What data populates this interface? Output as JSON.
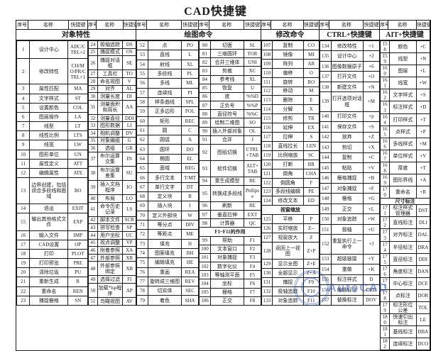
{
  "title": "CAD快捷键",
  "column_headers": [
    "序号",
    "名称",
    "快捷键"
  ],
  "section_titles": [
    "对象特性",
    "绘图命令",
    "修改命令",
    "CTRL+快捷键",
    "AIT+快捷键"
  ],
  "watermark": {
    "text": "AutoCAD"
  },
  "panels": [
    {
      "rows": [
        {
          "n": "1",
          "name": "设计中心",
          "key": "ADC/CTRL+2"
        },
        {
          "n": "2",
          "name": "修改特性",
          "key": "CH/MO/PR/CTRL+1"
        },
        {
          "n": "3",
          "name": "属性匹配",
          "key": "MA"
        },
        {
          "n": "4",
          "name": "文字样式",
          "key": "ST"
        },
        {
          "n": "5",
          "name": "设置颜色",
          "key": "COL"
        },
        {
          "n": "6",
          "name": "图层操作",
          "key": "LA"
        },
        {
          "n": "7",
          "name": "线型",
          "key": "LT"
        },
        {
          "n": "8",
          "name": "线性比例",
          "key": "LTS"
        },
        {
          "n": "9",
          "name": "线宽",
          "key": "LW"
        },
        {
          "n": "10",
          "name": "图形单位",
          "key": "UN"
        },
        {
          "n": "11",
          "name": "属性定义",
          "key": "ATT"
        },
        {
          "n": "12",
          "name": "编辑属性",
          "key": "ATE"
        },
        {
          "n": "13",
          "name": "边界创建，包括闭合多段线和面域",
          "key": "BO"
        },
        {
          "n": "14",
          "name": "退出",
          "key": "EXIT"
        },
        {
          "n": "15",
          "name": "输出其他格式文件",
          "key": "EXP"
        },
        {
          "n": "16",
          "name": "输入文件",
          "key": "IMP"
        },
        {
          "n": "17",
          "name": "CAD设置",
          "key": "OP"
        },
        {
          "n": "18",
          "name": "打印",
          "key": "PLOT"
        },
        {
          "n": "19",
          "name": "打印预览",
          "key": "PRE"
        },
        {
          "n": "20",
          "name": "清除垃圾",
          "key": "PU"
        },
        {
          "n": "21",
          "name": "重新生成",
          "key": "R"
        },
        {
          "n": "22",
          "name": "重命名",
          "key": "REN"
        },
        {
          "n": "23",
          "name": "捕捉栅格",
          "key": "SN"
        }
      ]
    },
    {
      "rows": [
        {
          "n": "24",
          "name": "极轴追踪",
          "key": "DS"
        },
        {
          "n": "25",
          "name": "捕捉模式",
          "key": "OS"
        },
        {
          "n": "26",
          "name": "捕捉对话框",
          "key": "SE"
        },
        {
          "n": "27",
          "name": "工具栏",
          "key": "TO"
        },
        {
          "n": "28",
          "name": "命名视图",
          "key": "V"
        },
        {
          "n": "29",
          "name": "对齐",
          "key": "AL"
        },
        {
          "n": "30",
          "name": "测量长度",
          "key": "DI"
        },
        {
          "n": "31",
          "name": "测量面积和周长",
          "key": "AA"
        },
        {
          "n": "32",
          "name": "测量直径",
          "key": "DDI"
        },
        {
          "n": "33",
          "name": "图形数据",
          "key": "LI"
        },
        {
          "n": "34",
          "name": "相机调整",
          "key": "DV"
        },
        {
          "n": "35",
          "name": "对象编组",
          "key": "G"
        },
        {
          "n": "36",
          "name": "选组",
          "key": "GR"
        },
        {
          "n": "37",
          "name": "布尔运算交集",
          "key": "IN"
        },
        {
          "n": "38",
          "name": "布尔运算差集",
          "key": "SU"
        },
        {
          "n": "39",
          "name": "插入文档程序",
          "key": "IO"
        },
        {
          "n": "40",
          "name": "布局",
          "key": "LO"
        },
        {
          "n": "41",
          "name": "命令历史记录",
          "key": "LS"
        },
        {
          "n": "42",
          "name": "脚本文件",
          "key": "SCR"
        },
        {
          "n": "43",
          "name": "拼写检查",
          "key": "SP"
        },
        {
          "n": "44",
          "name": "用户坐标",
          "key": "UC"
        },
        {
          "n": "45",
          "name": "视点调整",
          "key": "VP"
        },
        {
          "n": "46",
          "name": "附着参照",
          "key": "XA"
        },
        {
          "n": "47",
          "name": "外部参照",
          "key": "XR"
        },
        {
          "n": "48",
          "name": "外部参照绑定",
          "key": "XB"
        },
        {
          "n": "49",
          "name": "选择过滤",
          "key": "FI"
        },
        {
          "n": "50",
          "name": "加载*lsp程序",
          "key": "AP"
        },
        {
          "n": "51",
          "name": "鸟瞰视图",
          "key": "AV"
        }
      ]
    },
    {
      "rows": [
        {
          "n": "52",
          "name": "点",
          "key": "PO"
        },
        {
          "n": "53",
          "name": "直线",
          "key": "L"
        },
        {
          "n": "54",
          "name": "射线",
          "key": "XL"
        },
        {
          "n": "55",
          "name": "多段线",
          "key": "PL"
        },
        {
          "n": "56",
          "name": "多线",
          "key": "ML"
        },
        {
          "n": "57",
          "name": "连续线",
          "key": "PI"
        },
        {
          "n": "58",
          "name": "样条曲线",
          "key": "SPL"
        },
        {
          "n": "59",
          "name": "正多边形",
          "key": "POL"
        },
        {
          "n": "60",
          "name": "矩形",
          "key": "REC"
        },
        {
          "n": "61",
          "name": "圆",
          "key": "C"
        },
        {
          "n": "62",
          "name": "圆弧",
          "key": "A"
        },
        {
          "n": "63",
          "name": "圆环",
          "key": "DO"
        },
        {
          "n": "64",
          "name": "椭圆",
          "key": "EL"
        },
        {
          "n": "65",
          "name": "面域",
          "key": "REG"
        },
        {
          "n": "66",
          "name": "多行文本",
          "key": "T/MT"
        },
        {
          "n": "67",
          "name": "单行文字",
          "key": "DT"
        },
        {
          "n": "68",
          "name": "定义块",
          "key": "B"
        },
        {
          "n": "69",
          "name": "插入块",
          "key": "I"
        },
        {
          "n": "70",
          "name": "定义外部块",
          "key": "W"
        },
        {
          "n": "71",
          "name": "等分点",
          "key": "DIV"
        },
        {
          "n": "72",
          "name": "等距点",
          "key": "ME"
        },
        {
          "n": "73",
          "name": "填充",
          "key": "H"
        },
        {
          "n": "74",
          "name": "图案填充",
          "key": "BH"
        },
        {
          "n": "75",
          "name": "编辑填充",
          "key": "HE"
        },
        {
          "n": "76",
          "name": "重画",
          "key": "REA"
        },
        {
          "n": "77",
          "name": "旋转成三维图",
          "key": "REV"
        },
        {
          "n": "78",
          "name": "切实体",
          "key": "SEC"
        },
        {
          "n": "79",
          "name": "着色",
          "key": "SHA"
        }
      ]
    },
    {
      "rows": [
        {
          "n": "80",
          "name": "切面",
          "key": "SL"
        },
        {
          "n": "81",
          "name": "三维圆环",
          "key": "TOR"
        },
        {
          "n": "82",
          "name": "合并三维体",
          "key": "UNI"
        },
        {
          "n": "83",
          "name": "剪裁",
          "key": "XC"
        },
        {
          "n": "84",
          "name": "参考线",
          "key": "XL"
        },
        {
          "n": "85",
          "name": "恢复",
          "key": "U"
        },
        {
          "n": "86",
          "name": "度",
          "key": "%%D"
        },
        {
          "n": "87",
          "name": "正负号",
          "key": "%%P"
        },
        {
          "n": "88",
          "name": "直径符号",
          "key": "%%C"
        },
        {
          "n": "89",
          "name": "绘制二维图",
          "key": "SO"
        },
        {
          "n": "90",
          "name": "插入外部对象",
          "key": "OL"
        },
        {
          "n": "91",
          "name": "合并",
          "key": "J"
        },
        {
          "n": "92",
          "name": "图纸切换",
          "key": "CTRL+TAB"
        },
        {
          "n": "93",
          "name": "软件切换",
          "key": "ALT+TAB"
        },
        {
          "n": "94",
          "name": "重生成模型",
          "key": "RE"
        },
        {
          "n": "95",
          "name": "转换成多段线",
          "key": "Pellipse"
        },
        {
          "n": "96",
          "name": "刷新",
          "key": "RE"
        },
        {
          "n": "97",
          "name": "垂直拉伸",
          "key": "EXT"
        },
        {
          "n": "98",
          "name": "计算器",
          "key": "QC"
        },
        {
          "section": "F1~F11的作用"
        },
        {
          "n": "99",
          "name": "帮助",
          "key": "F1"
        },
        {
          "n": "100",
          "name": "文本窗口",
          "key": "F2"
        },
        {
          "n": "101",
          "name": "对象捕捉",
          "key": "F3"
        },
        {
          "n": "102",
          "name": "数字化仪",
          "key": "F4"
        },
        {
          "n": "103",
          "name": "等轴测平面",
          "key": "F5"
        },
        {
          "n": "104",
          "name": "坐标",
          "key": "F6"
        },
        {
          "n": "105",
          "name": "栅格",
          "key": "F7"
        },
        {
          "n": "106",
          "name": "正交",
          "key": "F8"
        }
      ]
    },
    {
      "rows": [
        {
          "n": "107",
          "name": "复制",
          "key": "CO"
        },
        {
          "n": "108",
          "name": "镜像",
          "key": "MI"
        },
        {
          "n": "109",
          "name": "阵列",
          "key": "AR"
        },
        {
          "n": "110",
          "name": "偏移",
          "key": "O"
        },
        {
          "n": "111",
          "name": "旋转",
          "key": "RO"
        },
        {
          "n": "112",
          "name": "移动",
          "key": "M"
        },
        {
          "n": "113",
          "name": "删除",
          "key": "E"
        },
        {
          "n": "114",
          "name": "分解",
          "key": "X"
        },
        {
          "n": "115",
          "name": "修剪",
          "key": "TR"
        },
        {
          "n": "116",
          "name": "延伸",
          "key": "EX"
        },
        {
          "n": "117",
          "name": "拉伸",
          "key": "S"
        },
        {
          "n": "118",
          "name": "直线拉长",
          "key": "LEN"
        },
        {
          "n": "119",
          "name": "比例缩放",
          "key": "SC"
        },
        {
          "n": "120",
          "name": "打断",
          "key": "BR"
        },
        {
          "n": "121",
          "name": "倒角",
          "key": "CHA"
        },
        {
          "n": "122",
          "name": "倒圆角",
          "key": "F"
        },
        {
          "n": "123",
          "name": "多段线编辑",
          "key": "PE"
        },
        {
          "n": "124",
          "name": "修改文本",
          "key": "ED"
        },
        {
          "section": "视窗缩放"
        },
        {
          "n": "125",
          "name": "平移",
          "key": "P"
        },
        {
          "n": "126",
          "name": "实时缩放",
          "key": "Z--"
        },
        {
          "n": "127",
          "name": "视窗放大",
          "key": "Z"
        },
        {
          "n": "128",
          "name": "返回上一视图",
          "key": "Z+P"
        },
        {
          "n": "129",
          "name": "显示全图",
          "key": "Z+E"
        },
        {
          "n": "130",
          "name": "全部显示",
          "key": "Z+A"
        },
        {
          "n": "131",
          "name": "捕捉",
          "key": "F9"
        },
        {
          "n": "132",
          "name": "极轴追踪",
          "key": "F10"
        },
        {
          "n": "133",
          "name": "对象追踪",
          "key": "F11"
        }
      ]
    },
    {
      "rows": [
        {
          "n": "134",
          "name": "修改特性",
          "key": "+1"
        },
        {
          "n": "135",
          "name": "设计中心",
          "key": "+2"
        },
        {
          "n": "136",
          "name": "图像数据原子",
          "key": "+6"
        },
        {
          "n": "137",
          "name": "打开文件",
          "key": "+O"
        },
        {
          "n": "138",
          "name": "新建文件",
          "key": "+N"
        },
        {
          "n": "139",
          "name": "打开选项对话框",
          "key": "+M"
        },
        {
          "n": "140",
          "name": "打印文件",
          "key": "+p"
        },
        {
          "n": "141",
          "name": "保存文件",
          "key": "+S"
        },
        {
          "n": "142",
          "name": "放弃",
          "key": "+Z"
        },
        {
          "n": "143",
          "name": "剪切",
          "key": "+X"
        },
        {
          "n": "144",
          "name": "复制",
          "key": "+C"
        },
        {
          "n": "145",
          "name": "粘贴",
          "key": "+V"
        },
        {
          "n": "146",
          "name": "栅格捕捉",
          "key": "+B"
        },
        {
          "n": "147",
          "name": "对象捕捉",
          "key": "+F"
        },
        {
          "n": "148",
          "name": "栅格",
          "key": "+G"
        },
        {
          "n": "149",
          "name": "正交",
          "key": "+L"
        },
        {
          "n": "150",
          "name": "对象追踪",
          "key": "+W"
        },
        {
          "n": "151",
          "name": "极轴",
          "key": "+U"
        },
        {
          "n": "152",
          "name": "重复执行上一命令",
          "key": "+J"
        },
        {
          "n": "153",
          "name": "超级链接",
          "key": "+Y"
        },
        {
          "n": "154",
          "name": "重做",
          "key": "+K"
        },
        {
          "n": "155",
          "name": "标注样式",
          "key": "D"
        },
        {
          "n": "156",
          "name": "编辑标注",
          "key": "DED"
        },
        {
          "n": "157",
          "name": "替换标注",
          "key": "DOV"
        }
      ]
    },
    {
      "rows": [
        {
          "n": "158",
          "name": "颜色",
          "key": "+C"
        },
        {
          "n": "159",
          "name": "线型",
          "key": "+N"
        },
        {
          "n": "160",
          "name": "图层",
          "key": "+L"
        },
        {
          "n": "161",
          "name": "线宽",
          "key": "+W"
        },
        {
          "n": "162",
          "name": "文字样式",
          "key": "+S"
        },
        {
          "n": "163",
          "name": "标注样式",
          "key": "+D"
        },
        {
          "n": "164",
          "name": "打印样式",
          "key": "+T"
        },
        {
          "n": "165",
          "name": "点样式",
          "key": "+P"
        },
        {
          "n": "166",
          "name": "多线样式",
          "key": "+M"
        },
        {
          "n": "167",
          "name": "单位样式",
          "key": "+V"
        },
        {
          "n": "168",
          "name": "厚度",
          "key": "+T"
        },
        {
          "n": "169",
          "name": "图形界线",
          "key": "+A"
        },
        {
          "n": "170",
          "name": "重命名",
          "key": "+R"
        },
        {
          "section": "尺寸标注"
        },
        {
          "n": "171",
          "name": "标注样式管理器",
          "key": "DST"
        },
        {
          "n": "172",
          "name": "直线标注",
          "key": "DLI"
        },
        {
          "n": "173",
          "name": "对齐标注",
          "key": "DAL"
        },
        {
          "n": "174",
          "name": "半径标注",
          "key": "DRA"
        },
        {
          "n": "175",
          "name": "直径标注",
          "key": "DDI"
        },
        {
          "n": "176",
          "name": "角度标注",
          "key": "DAN"
        },
        {
          "n": "177",
          "name": "中心标注",
          "key": "DCE"
        },
        {
          "n": "178",
          "name": "点标注",
          "key": "DOR"
        },
        {
          "n": "179",
          "name": "标注形位公差",
          "key": "TOL"
        },
        {
          "n": "180",
          "name": "快速引出标注",
          "key": "LE"
        },
        {
          "n": "181",
          "name": "基线标注",
          "key": "DBA"
        },
        {
          "n": "182",
          "name": "连续标注",
          "key": "DCO"
        }
      ]
    }
  ]
}
